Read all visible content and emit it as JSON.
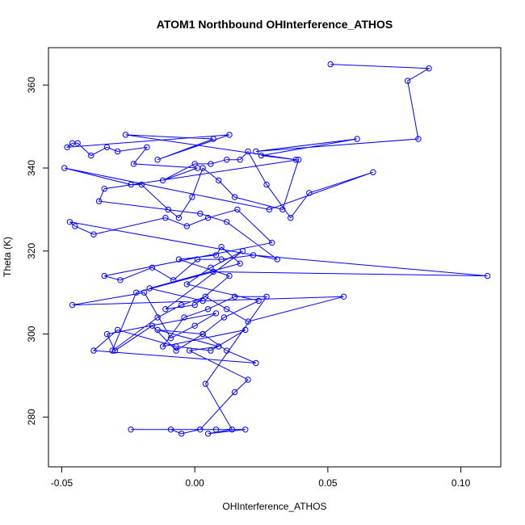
{
  "chart_data": {
    "type": "line",
    "title": "ATOM1 Northbound OHInterference_ATHOS",
    "xlabel": "OHInterference_ATHOS",
    "ylabel": "Theta (K)",
    "xlim": [
      -0.055,
      0.115
    ],
    "ylim": [
      268,
      369
    ],
    "xticks": [
      -0.05,
      0.0,
      0.05,
      0.1
    ],
    "xtick_labels": [
      "-0.05",
      "0.00",
      "0.05",
      "0.10"
    ],
    "yticks": [
      280,
      300,
      320,
      340,
      360
    ],
    "ytick_labels": [
      "280",
      "300",
      "320",
      "340",
      "360"
    ],
    "grid": false,
    "legend": "none",
    "series_color": "#0000ff",
    "x": [
      0.051,
      0.088,
      0.08,
      0.084,
      0.023,
      0.061,
      0.025,
      0.038,
      -0.026,
      0.007,
      -0.014,
      0.013,
      -0.048,
      -0.046,
      -0.044,
      -0.039,
      -0.033,
      -0.029,
      -0.018,
      -0.023,
      0.001,
      -0.012,
      0.0,
      0.006,
      0.012,
      0.017,
      0.02,
      0.027,
      0.036,
      0.043,
      0.067,
      0.028,
      -0.049,
      -0.024,
      -0.02,
      -0.01,
      -0.006,
      -0.001,
      0.003,
      0.009,
      0.015,
      0.033,
      0.039,
      -0.034,
      -0.036,
      0.002,
      0.012,
      0.031,
      -0.047,
      -0.045,
      -0.038,
      -0.011,
      -0.003,
      0.005,
      0.016,
      0.029,
      -0.034,
      -0.028,
      -0.016,
      -0.008,
      0.001,
      0.01,
      0.022,
      0.11,
      0.007,
      -0.022,
      -0.031,
      -0.014,
      -0.005,
      0.004,
      0.012,
      0.02,
      0.056,
      -0.046,
      -0.019,
      -0.009,
      0.0,
      0.008,
      -0.033,
      -0.03,
      -0.016,
      -0.007,
      0.003,
      0.012,
      0.023,
      -0.038,
      -0.029,
      -0.007,
      0.006,
      0.019,
      -0.012,
      -0.004,
      0.005,
      0.015,
      0.027,
      0.004,
      0.014,
      0.005,
      0.019,
      0.008,
      -0.024,
      -0.009,
      -0.005,
      0.002,
      0.015,
      0.02,
      -0.002,
      0.009,
      -0.014,
      0.003,
      0.011,
      0.024,
      -0.003,
      0.006,
      0.018,
      -0.011,
      0.0,
      0.013,
      -0.006,
      0.008,
      0.01,
      0.017,
      -0.017,
      0.003
    ],
    "y": [
      365,
      364,
      361,
      347,
      344,
      347,
      343,
      342,
      348,
      347,
      342,
      348,
      345,
      346,
      346,
      343,
      345,
      344,
      345,
      341,
      340,
      337,
      341,
      341,
      342,
      342,
      344,
      336,
      328,
      334,
      339,
      330,
      340,
      336,
      336,
      330,
      328,
      333,
      340,
      337,
      333,
      330,
      342,
      335,
      332,
      329,
      327,
      318,
      327,
      326,
      324,
      328,
      326,
      328,
      330,
      322,
      314,
      313,
      316,
      313,
      318,
      318,
      319,
      314,
      315,
      310,
      296,
      304,
      307,
      309,
      306,
      303,
      309,
      307,
      310,
      299,
      302,
      305,
      300,
      296,
      302,
      296,
      300,
      296,
      293,
      296,
      301,
      297,
      296,
      301,
      297,
      304,
      306,
      309,
      309,
      288,
      277,
      276,
      277,
      277,
      277,
      277,
      276,
      277,
      286,
      289,
      296,
      297,
      301,
      300,
      304,
      308,
      312,
      316,
      320,
      306,
      307,
      314,
      318,
      319,
      321,
      317,
      311,
      308
    ]
  }
}
